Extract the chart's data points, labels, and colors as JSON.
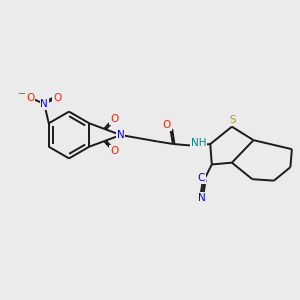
{
  "bg_color": "#ebebeb",
  "bond_color": "#1a1a1a",
  "bond_lw": 1.4,
  "fig_size": [
    3.0,
    3.0
  ],
  "dpi": 100,
  "xlim": [
    0,
    10
  ],
  "ylim": [
    0,
    10
  ],
  "colors": {
    "N": "#0000ff",
    "O": "#ff2200",
    "S": "#b8a000",
    "C": "#1a1a1a",
    "NH": "#008888"
  },
  "fontsize": 7.5
}
